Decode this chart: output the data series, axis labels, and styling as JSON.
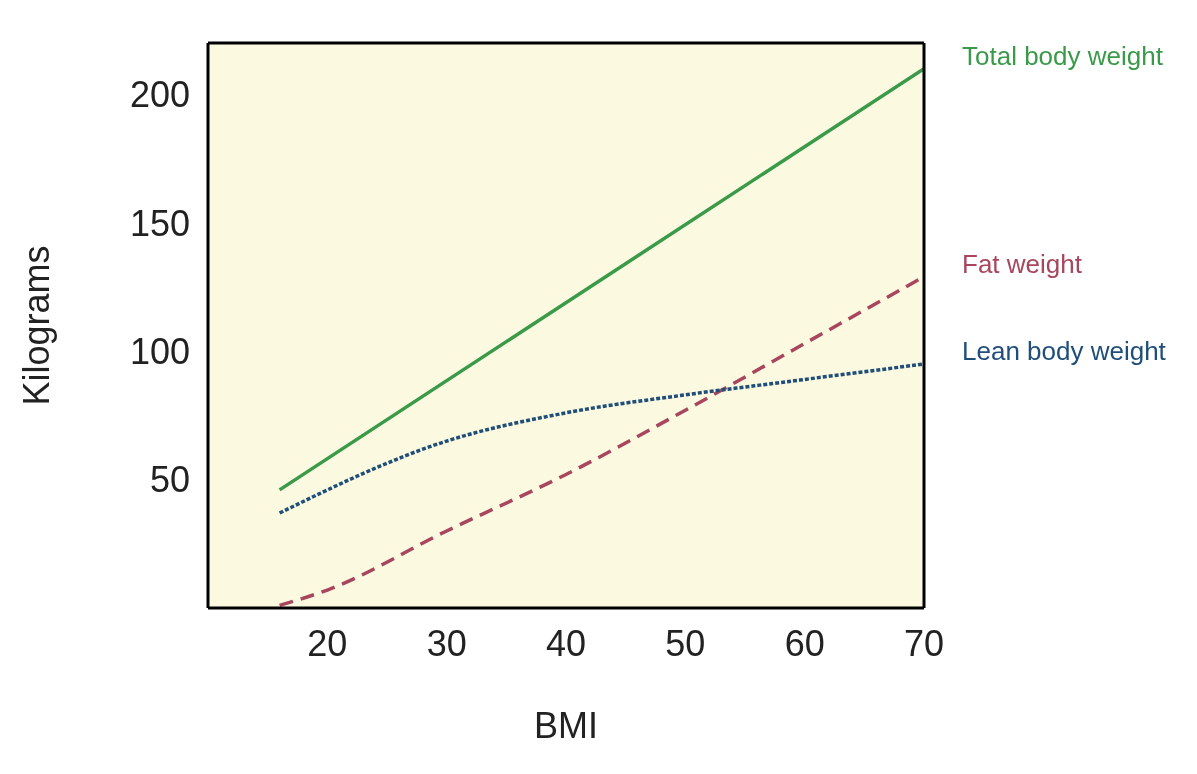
{
  "chart_data": {
    "type": "line",
    "xlabel": "BMI",
    "ylabel": "Kilograms",
    "xlim": [
      10,
      70
    ],
    "xticks": [
      20,
      30,
      40,
      50,
      60,
      70
    ],
    "ylim": [
      0,
      220
    ],
    "yticks": [
      50,
      100,
      150,
      200
    ],
    "grid": false,
    "legend": false,
    "marker": "none",
    "series": [
      {
        "name": "Total body weight",
        "color": "#3a9a4a",
        "line_style": "solid",
        "x": [
          16,
          70
        ],
        "values": [
          46,
          210
        ]
      },
      {
        "name": "Fat weight",
        "color": "#a8465e",
        "line_style": "dashed",
        "x": [
          16,
          20,
          30,
          40,
          50,
          60,
          70
        ],
        "values": [
          1,
          7,
          30,
          52,
          77,
          103,
          129
        ]
      },
      {
        "name": "Lean body weight",
        "color": "#1f4e7a",
        "line_style": "dotted",
        "x": [
          16,
          30,
          40,
          50,
          60,
          70
        ],
        "values": [
          37,
          65,
          76,
          83,
          89,
          95
        ]
      }
    ]
  }
}
